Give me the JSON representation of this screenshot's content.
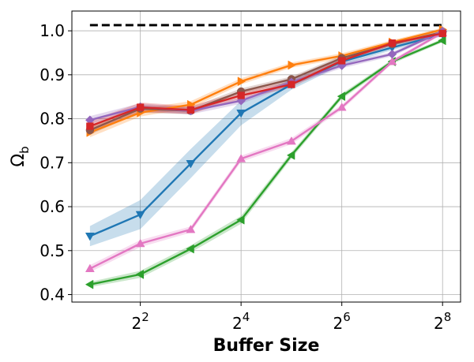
{
  "chart_data": {
    "type": "line",
    "xlabel": "Buffer Size",
    "ylabel": "Ω",
    "ylabel_sub": "b",
    "x_scale": "log2",
    "xlim": [
      1.56,
      328
    ],
    "ylim": [
      0.383,
      1.045
    ],
    "x_ticks": [
      {
        "value": 4,
        "base": "2",
        "exp": "2"
      },
      {
        "value": 16,
        "base": "2",
        "exp": "4"
      },
      {
        "value": 64,
        "base": "2",
        "exp": "6"
      },
      {
        "value": 256,
        "base": "2",
        "exp": "8"
      }
    ],
    "y_ticks": [
      "0.4",
      "0.5",
      "0.6",
      "0.7",
      "0.8",
      "0.9",
      "1.0"
    ],
    "grid": true,
    "x": [
      2,
      4,
      8,
      16,
      32,
      64,
      128,
      256
    ],
    "reference_line": {
      "y": 1.013,
      "color": "#000000",
      "style": "dashed"
    },
    "series": [
      {
        "color": "#1f77b4",
        "marker": "triangle-down",
        "values": [
          0.533,
          0.582,
          0.698,
          0.813,
          0.878,
          0.93,
          0.962,
          0.992
        ],
        "band": [
          0.023,
          0.033,
          0.033,
          0.028,
          0.012,
          0.008,
          0.006,
          0.004
        ]
      },
      {
        "color": "#2ca02c",
        "marker": "triangle-left",
        "values": [
          0.423,
          0.446,
          0.504,
          0.57,
          0.717,
          0.851,
          0.93,
          0.978
        ],
        "band": [
          0.006,
          0.008,
          0.008,
          0.009,
          0.007,
          0.006,
          0.005,
          0.004
        ]
      },
      {
        "color": "#e377c2",
        "marker": "triangle-up",
        "values": [
          0.459,
          0.516,
          0.548,
          0.709,
          0.749,
          0.826,
          0.93,
          0.996
        ],
        "band": [
          0.008,
          0.008,
          0.007,
          0.007,
          0.007,
          0.006,
          0.005,
          0.004
        ]
      },
      {
        "color": "#ff7f0e",
        "marker": "triangle-right",
        "values": [
          0.769,
          0.814,
          0.832,
          0.885,
          0.922,
          0.943,
          0.974,
          1.003
        ],
        "band": [
          0.011,
          0.009,
          0.008,
          0.007,
          0.006,
          0.006,
          0.005,
          0.004
        ]
      },
      {
        "color": "#8c564b",
        "marker": "circle",
        "values": [
          0.774,
          0.823,
          0.818,
          0.862,
          0.89,
          0.938,
          0.97,
          0.997
        ],
        "band": [
          0.01,
          0.009,
          0.008,
          0.007,
          0.006,
          0.006,
          0.005,
          0.004
        ]
      },
      {
        "color": "#9467bd",
        "marker": "diamond",
        "values": [
          0.797,
          0.827,
          0.818,
          0.841,
          0.883,
          0.921,
          0.947,
          0.999
        ],
        "band": [
          0.009,
          0.008,
          0.008,
          0.007,
          0.006,
          0.006,
          0.005,
          0.004
        ]
      },
      {
        "color": "#d62728",
        "marker": "square",
        "values": [
          0.783,
          0.826,
          0.82,
          0.853,
          0.878,
          0.932,
          0.972,
          0.994
        ],
        "band": [
          0.012,
          0.011,
          0.009,
          0.008,
          0.007,
          0.006,
          0.005,
          0.004
        ]
      }
    ]
  }
}
